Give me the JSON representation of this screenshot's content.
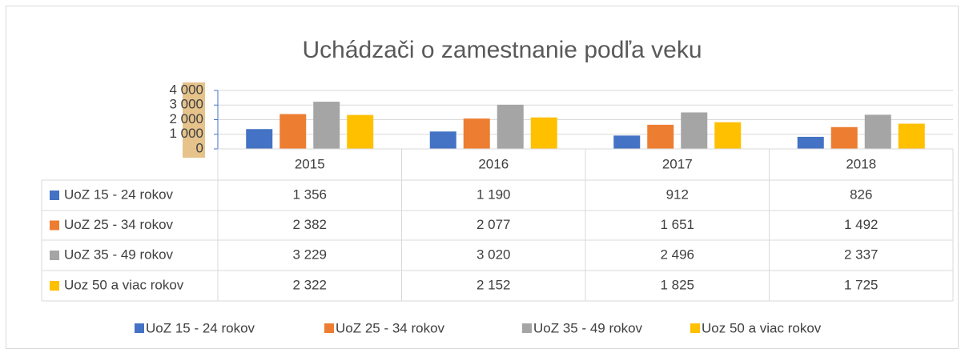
{
  "chart_data": {
    "type": "bar",
    "title": "Uchádzači o zamestnanie podľa veku",
    "categories": [
      "2015",
      "2016",
      "2017",
      "2018"
    ],
    "series": [
      {
        "name": "UoZ 15 - 24 rokov",
        "color": "#4472c4",
        "values": [
          1356,
          1190,
          912,
          826
        ],
        "value_labels": [
          "1 356",
          "1 190",
          "912",
          "826"
        ]
      },
      {
        "name": "UoZ 25 - 34 rokov",
        "color": "#ed7d31",
        "values": [
          2382,
          2077,
          1651,
          1492
        ],
        "value_labels": [
          "2 382",
          "2 077",
          "1 651",
          "1 492"
        ]
      },
      {
        "name": "UoZ 35 - 49 rokov",
        "color": "#a5a5a5",
        "values": [
          3229,
          3020,
          2496,
          2337
        ],
        "value_labels": [
          "3 229",
          "3 020",
          "2 496",
          "2 337"
        ]
      },
      {
        "name": "Uoz 50 a viac rokov",
        "color": "#ffc000",
        "values": [
          2322,
          2152,
          1825,
          1725
        ],
        "value_labels": [
          "2 322",
          "2 152",
          "1 825",
          "1 725"
        ]
      }
    ],
    "ylim": [
      0,
      4000
    ],
    "yticks": [
      0,
      {
        "value": 1000,
        "label": "1 000"
      },
      {
        "value": 2000,
        "label": "2 000"
      },
      {
        "value": 3000,
        "label": "3 000"
      },
      {
        "value": 4000,
        "label": "4 000"
      }
    ],
    "grid": true
  }
}
